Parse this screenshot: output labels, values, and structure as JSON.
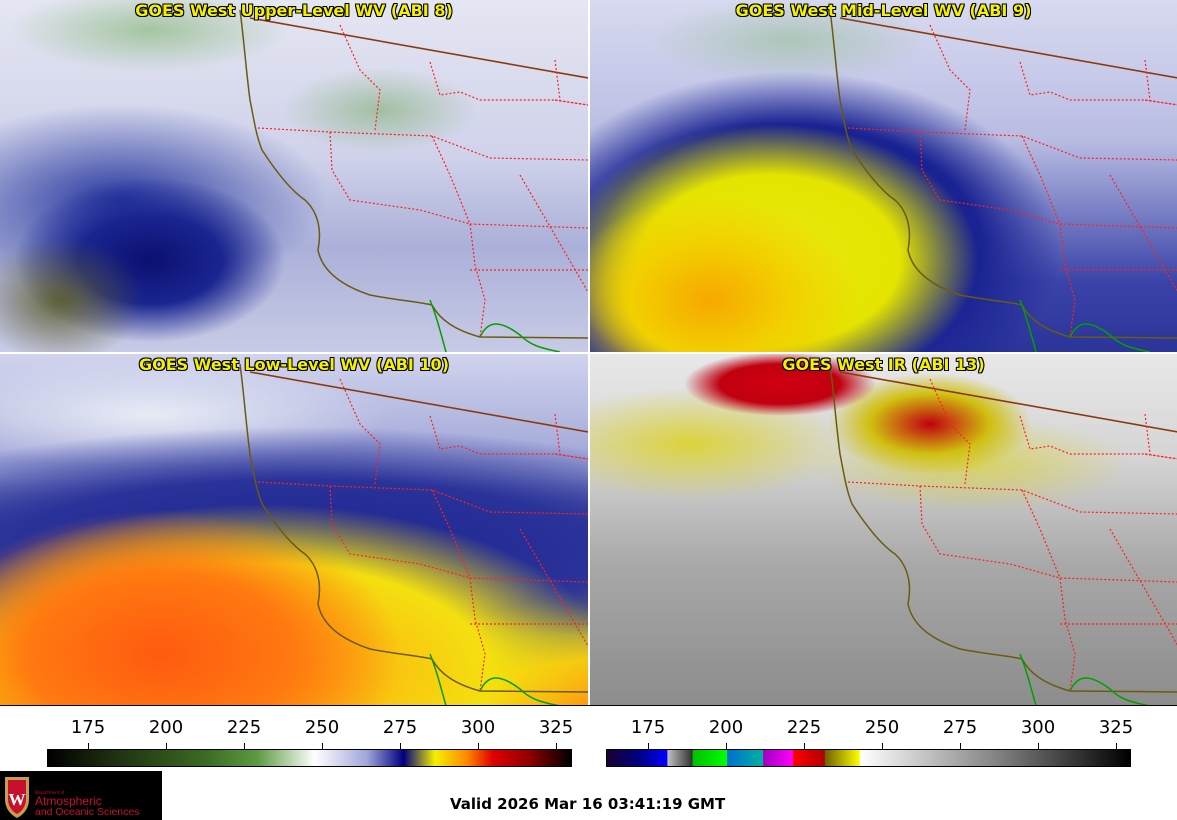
{
  "panels": [
    {
      "title": "GOES West Upper-Level WV (ABI 8)"
    },
    {
      "title": "GOES West Mid-Level WV (ABI 9)"
    },
    {
      "title": "GOES West Low-Level WV (ABI 10)"
    },
    {
      "title": "GOES West IR (ABI 13)"
    }
  ],
  "colorbars": [
    {
      "name": "water-vapor",
      "ticks": [
        "175",
        "200",
        "225",
        "250",
        "275",
        "300",
        "325"
      ]
    },
    {
      "name": "infrared",
      "ticks": [
        "175",
        "200",
        "225",
        "250",
        "275",
        "300",
        "325"
      ]
    }
  ],
  "logo": {
    "dept": "Department of",
    "line1": "Atmospheric",
    "line2": "and Oceanic Sciences",
    "emblem": "W"
  },
  "valid_time": "Valid 2026 Mar 16 03:41:19 GMT",
  "colors": {
    "title": "#f4f000",
    "state_borders": "#ff0000",
    "coast": "#6b5a10",
    "mexico": "#00a000"
  }
}
